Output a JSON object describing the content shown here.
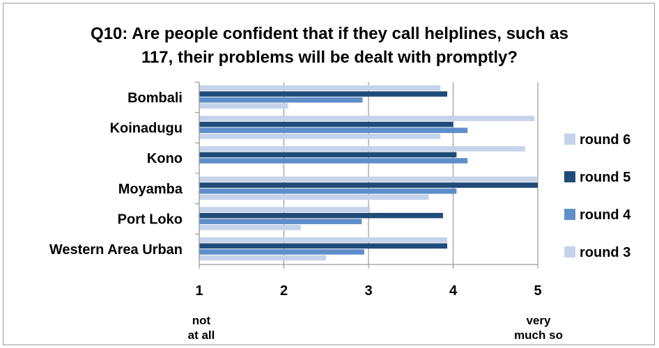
{
  "chart_data": {
    "type": "bar",
    "orientation": "horizontal",
    "title_lines": [
      "Q10: Are people confident that if they call helplines, such as",
      "117, their problems will be dealt with promptly?"
    ],
    "categories": [
      "Bombali",
      "Koinadugu",
      "Kono",
      "Moyamba",
      "Port Loko",
      "Western Area Urban"
    ],
    "series": [
      {
        "name": "round 6",
        "color": "#c5d3ea",
        "values": [
          3.85,
          4.96,
          4.85,
          5.0,
          3.02,
          3.93
        ]
      },
      {
        "name": "round 5",
        "color": "#1f4b78",
        "values": [
          3.93,
          4.0,
          4.04,
          5.0,
          3.88,
          3.93
        ]
      },
      {
        "name": "round 4",
        "color": "#5f8ec9",
        "values": [
          2.93,
          4.17,
          4.17,
          4.04,
          2.92,
          2.95
        ]
      },
      {
        "name": "round 3",
        "color": "#c5d3ea",
        "values": [
          2.05,
          3.85,
          null,
          3.71,
          2.2,
          2.5
        ]
      }
    ],
    "xlim": [
      1,
      5
    ],
    "xticks": [
      "1",
      "2",
      "3",
      "4",
      "5"
    ],
    "x_end_labels": {
      "low": "not at all",
      "high": "very much so"
    },
    "grid": true,
    "legend_position": "right"
  }
}
